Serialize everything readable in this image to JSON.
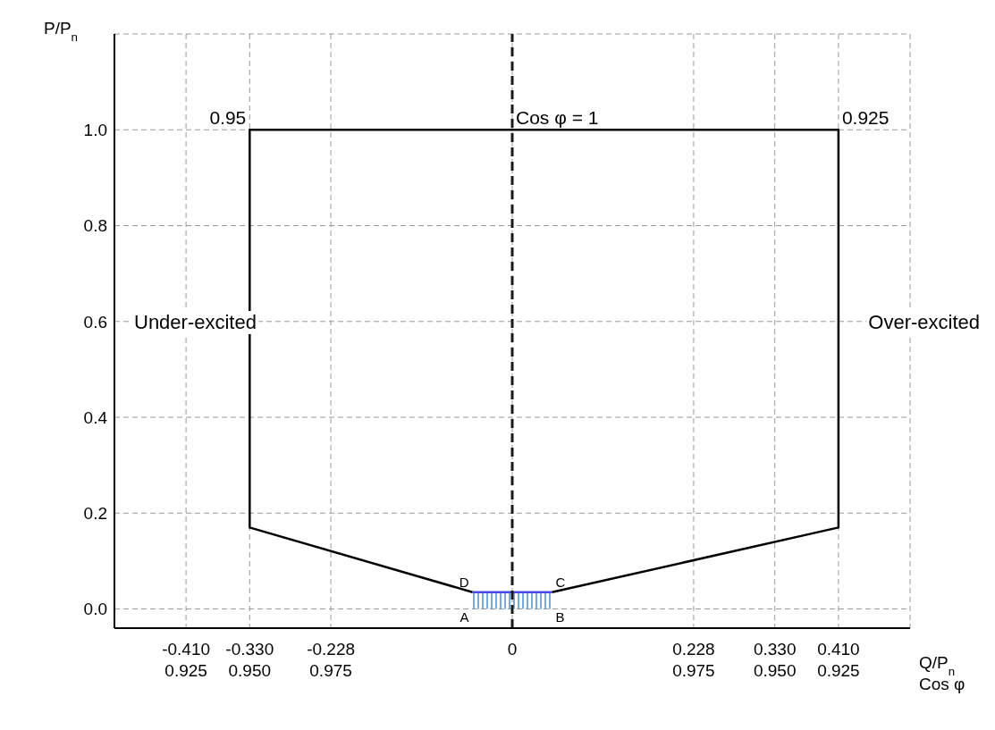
{
  "chart_data": {
    "type": "line",
    "xlabel": "Q/P$_{n}$\nCos φ",
    "ylabel": "P/P$_{n}$",
    "xlim": [
      -0.5,
      0.5
    ],
    "ylim": [
      -0.04,
      1.2
    ],
    "xticks": [
      {
        "value": -0.41,
        "label": "-0.410"
      },
      {
        "value": -0.33,
        "label": "-0.330"
      },
      -0.228,
      0,
      0.228,
      {
        "value": 0.33,
        "label": "0.330"
      },
      {
        "value": 0.41,
        "label": "0.410"
      }
    ],
    "yticks": [
      {
        "value": 0,
        "label": "0.0"
      },
      0.2,
      0.4,
      0.6,
      0.8,
      {
        "value": 1,
        "label": "1.0"
      }
    ],
    "grid": true,
    "series": [
      {
        "color": "#000000",
        "line_style": "solid",
        "x": [
          -0.05,
          -0.33,
          -0.33,
          0.41,
          0.41,
          0.05
        ],
        "values": [
          0.035,
          0.17,
          1,
          1,
          0.17,
          0.035
        ]
      },
      {
        "type": "area",
        "color": "#4a4ae8",
        "x": [
          -0.05,
          0.05
        ],
        "values": [
          0.035,
          0.035
        ]
      }
    ],
    "ref_lines": [
      {
        "axis": "x",
        "value": 0,
        "color": "#1a1a1a",
        "line_style": "dashed"
      }
    ],
    "annotations": [
      "Under-excited",
      "Over-excited",
      {
        "text": "0.95",
        "x": -0.33,
        "y": 1
      },
      {
        "text": "Cos φ = 1",
        "x": 0,
        "y": 1
      },
      {
        "text": "0.925",
        "x": 0.41,
        "y": 1
      },
      {
        "text": "A",
        "x": -0.05,
        "y": 0
      },
      {
        "text": "B",
        "x": 0.05,
        "y": 0
      },
      {
        "text": "C",
        "x": 0.05,
        "y": 0.035
      },
      {
        "text": "D",
        "x": -0.05,
        "y": 0.035
      },
      "0.925",
      "0.950",
      "0.975",
      "0.975",
      "0.950",
      "0.925"
    ]
  }
}
